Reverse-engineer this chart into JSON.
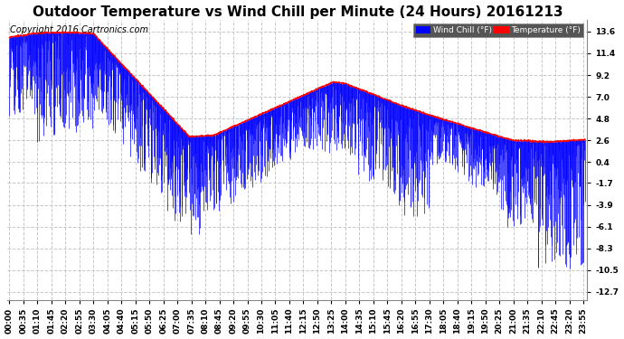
{
  "title": "Outdoor Temperature vs Wind Chill per Minute (24 Hours) 20161213",
  "copyright": "Copyright 2016 Cartronics.com",
  "yticks": [
    13.6,
    11.4,
    9.2,
    7.0,
    4.8,
    2.6,
    0.4,
    -1.7,
    -3.9,
    -6.1,
    -8.3,
    -10.5,
    -12.7
  ],
  "ylim": [
    -13.5,
    14.8
  ],
  "bg_color": "#ffffff",
  "grid_color": "#c8c8c8",
  "wind_chill_color": "#0000ff",
  "temp_color": "#ff0000",
  "title_fontsize": 11,
  "copyright_fontsize": 7,
  "tick_fontsize": 6.5,
  "n_minutes": 1440,
  "xtick_step": 35
}
